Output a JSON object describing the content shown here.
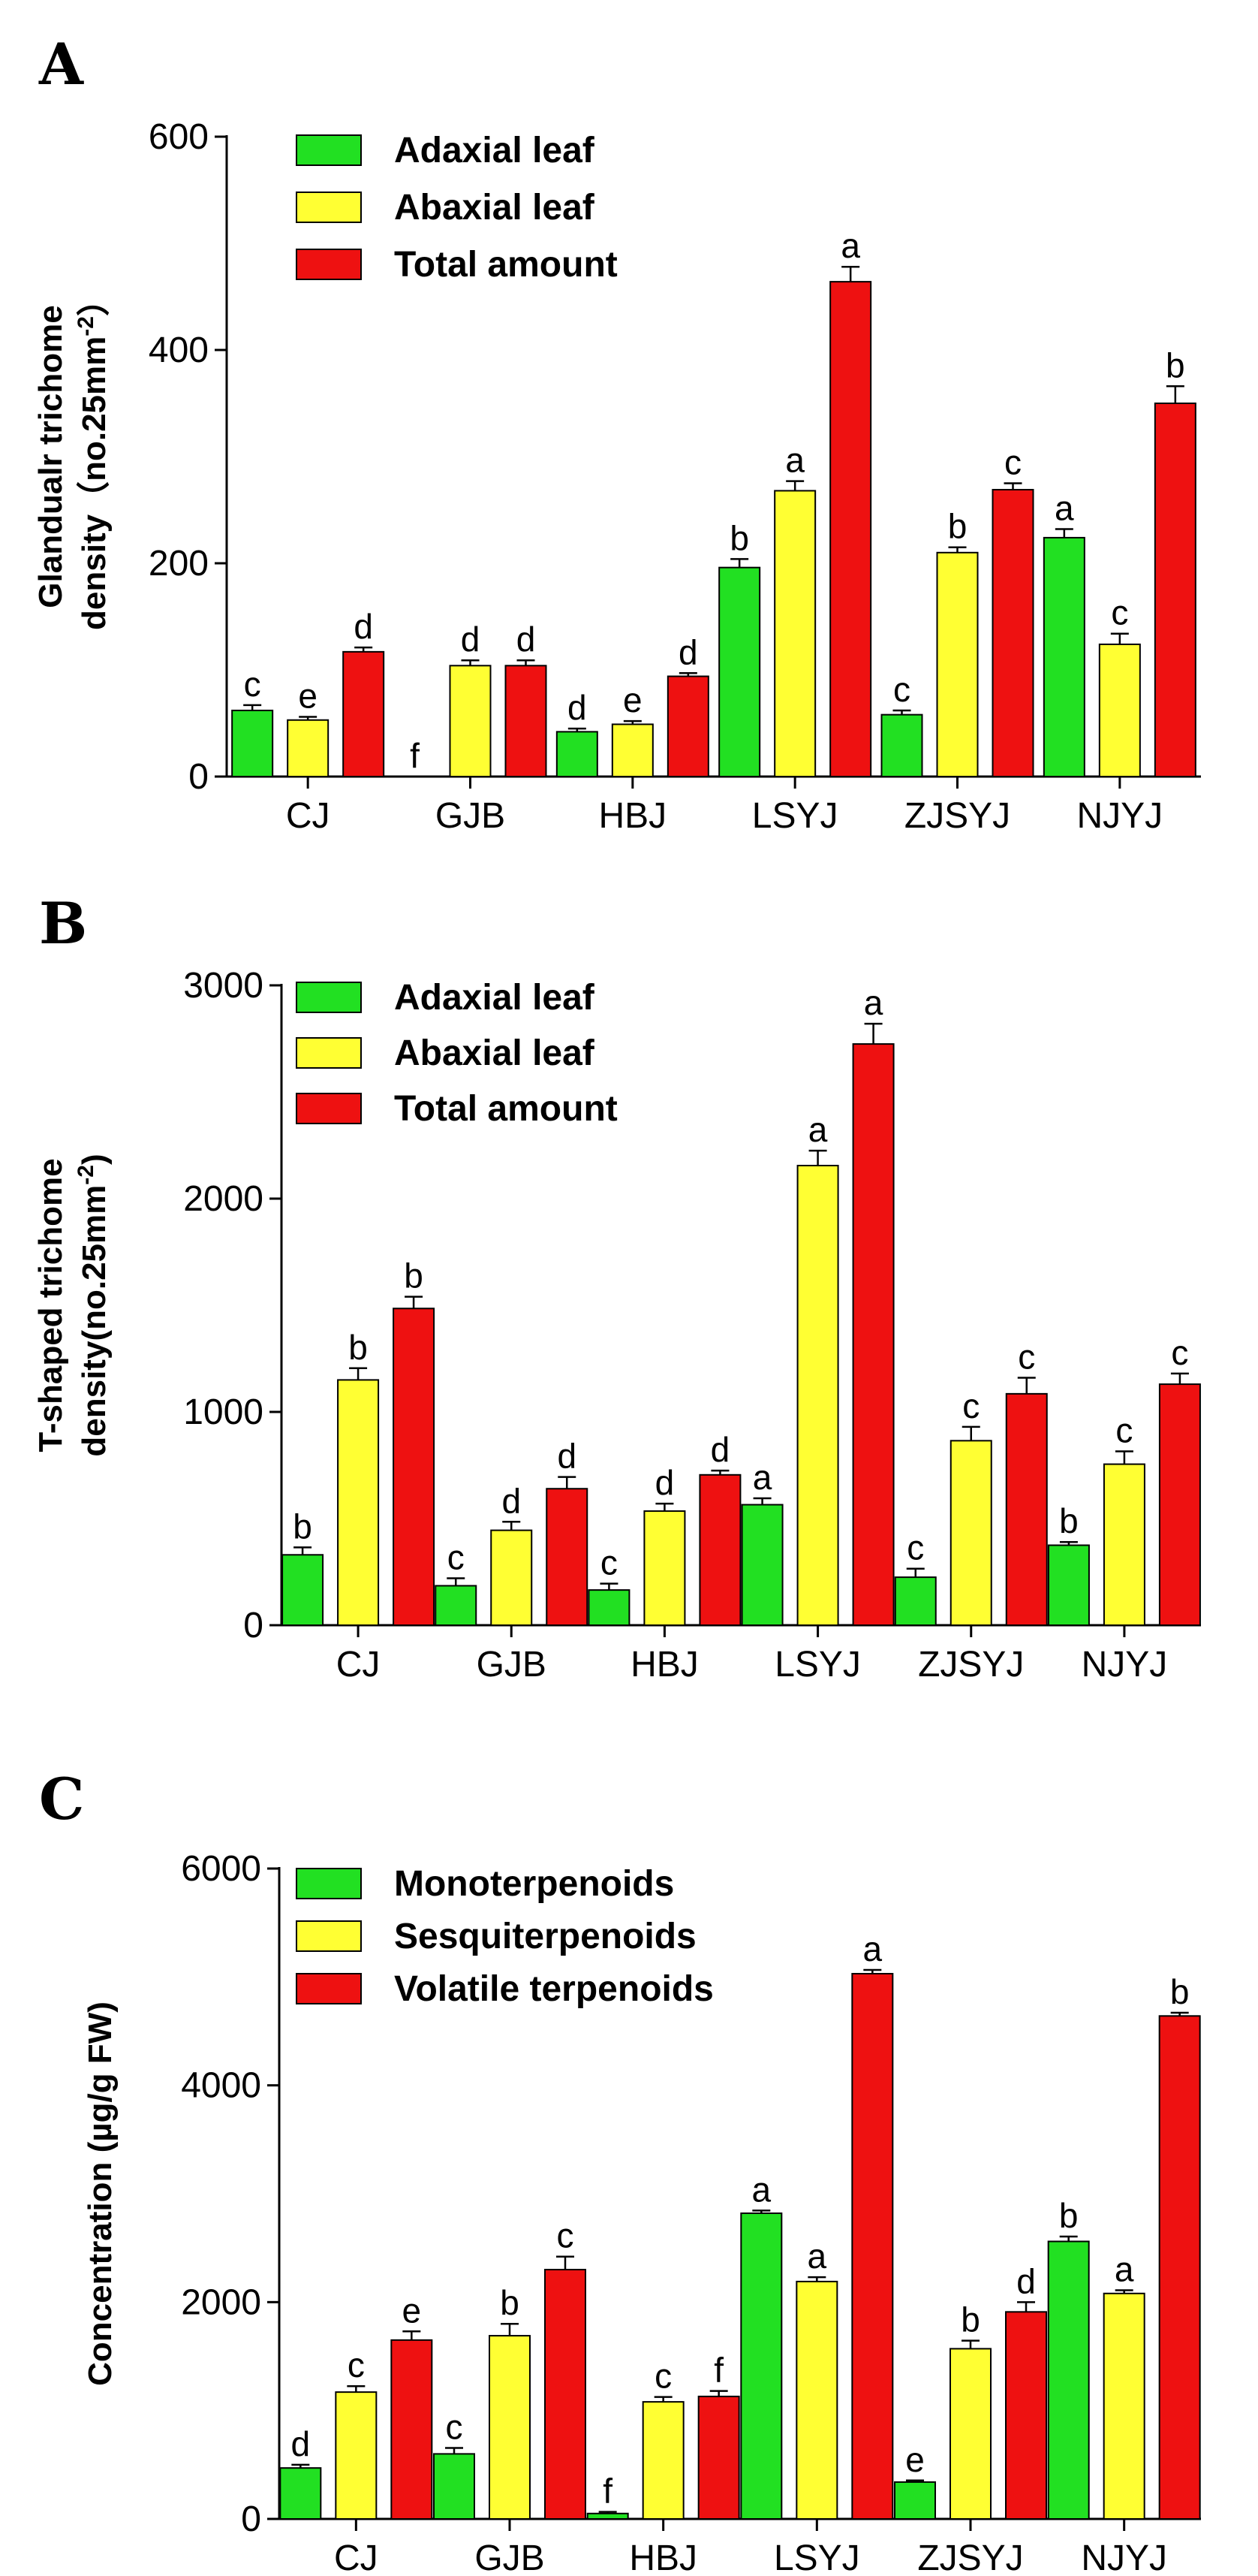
{
  "chart_data": [
    {
      "type": "bar",
      "panel": "A",
      "ylabel_line1": "Glandualr trichome",
      "ylabel_line2": "density（no.25mm",
      "ylabel_sup": "-2",
      "ylabel_close": "）",
      "ylim": [
        0,
        600
      ],
      "yticks": [
        0,
        200,
        400,
        600
      ],
      "categories": [
        "CJ",
        "GJB",
        "HBJ",
        "LSYJ",
        "ZJSYJ",
        "NJYJ"
      ],
      "colors": [
        "#22e022",
        "#ffff33",
        "#ee1111"
      ],
      "series": [
        {
          "name": "Adaxial leaf",
          "values": [
            62,
            0,
            42,
            196,
            58,
            224
          ],
          "errors": [
            5,
            0,
            3,
            8,
            4,
            8
          ],
          "letters": [
            "c",
            "f",
            "d",
            "b",
            "c",
            "a"
          ]
        },
        {
          "name": "Abaxial leaf",
          "values": [
            53,
            104,
            49,
            268,
            210,
            124
          ],
          "errors": [
            3,
            5,
            3,
            9,
            5,
            10
          ],
          "letters": [
            "e",
            "d",
            "e",
            "a",
            "b",
            "c"
          ]
        },
        {
          "name": "Total amount",
          "values": [
            117,
            104,
            94,
            464,
            269,
            350
          ],
          "errors": [
            4,
            5,
            3,
            14,
            6,
            16
          ],
          "letters": [
            "d",
            "d",
            "d",
            "a",
            "c",
            "b"
          ]
        }
      ]
    },
    {
      "type": "bar",
      "panel": "B",
      "ylabel_line1": "T-shaped trichome",
      "ylabel_line2": "density(no.25mm",
      "ylabel_sup": "-2",
      "ylabel_close": ")",
      "ylim": [
        0,
        3000
      ],
      "yticks": [
        0,
        1000,
        2000,
        3000
      ],
      "categories": [
        "CJ",
        "GJB",
        "HBJ",
        "LSYJ",
        "ZJSYJ",
        "NJYJ"
      ],
      "colors": [
        "#22e022",
        "#ffff33",
        "#ee1111"
      ],
      "series": [
        {
          "name": "Adaxial leaf",
          "values": [
            330,
            185,
            165,
            565,
            225,
            375
          ],
          "errors": [
            35,
            35,
            30,
            30,
            40,
            15
          ],
          "letters": [
            "b",
            "c",
            "c",
            "a",
            "c",
            "b"
          ]
        },
        {
          "name": "Abaxial leaf",
          "values": [
            1150,
            445,
            535,
            2155,
            865,
            755
          ],
          "errors": [
            55,
            40,
            35,
            70,
            65,
            60
          ],
          "letters": [
            "b",
            "d",
            "d",
            "a",
            "c",
            "c"
          ]
        },
        {
          "name": "Total amount",
          "values": [
            1485,
            640,
            705,
            2725,
            1085,
            1130
          ],
          "errors": [
            55,
            55,
            20,
            95,
            75,
            50
          ],
          "letters": [
            "b",
            "d",
            "d",
            "a",
            "c",
            "c"
          ]
        }
      ]
    },
    {
      "type": "bar",
      "panel": "C",
      "ylabel_line1": "Concentration (µg/g FW)",
      "ylabel_line2": "",
      "ylabel_sup": "",
      "ylabel_close": "",
      "ylim": [
        0,
        6000
      ],
      "yticks": [
        0,
        2000,
        4000,
        6000
      ],
      "categories": [
        "CJ",
        "GJB",
        "HBJ",
        "LSYJ",
        "ZJSYJ",
        "NJYJ"
      ],
      "colors": [
        "#22e022",
        "#ffff33",
        "#ee1111"
      ],
      "series": [
        {
          "name": "Monoterpenoids",
          "values": [
            470,
            600,
            50,
            2820,
            340,
            2560
          ],
          "errors": [
            30,
            55,
            15,
            25,
            15,
            45
          ],
          "letters": [
            "d",
            "c",
            "f",
            "a",
            "e",
            "b"
          ]
        },
        {
          "name": "Sesquiterpenoids",
          "values": [
            1170,
            1690,
            1080,
            2190,
            1570,
            2080
          ],
          "errors": [
            55,
            110,
            45,
            40,
            75,
            30
          ],
          "letters": [
            "c",
            "b",
            "c",
            "a",
            "b",
            "a"
          ]
        },
        {
          "name": "Volatile terpenoids",
          "values": [
            1650,
            2300,
            1130,
            5030,
            1910,
            4640
          ],
          "errors": [
            80,
            120,
            50,
            35,
            90,
            30
          ],
          "letters": [
            "e",
            "c",
            "f",
            "a",
            "d",
            "b"
          ]
        }
      ]
    }
  ]
}
